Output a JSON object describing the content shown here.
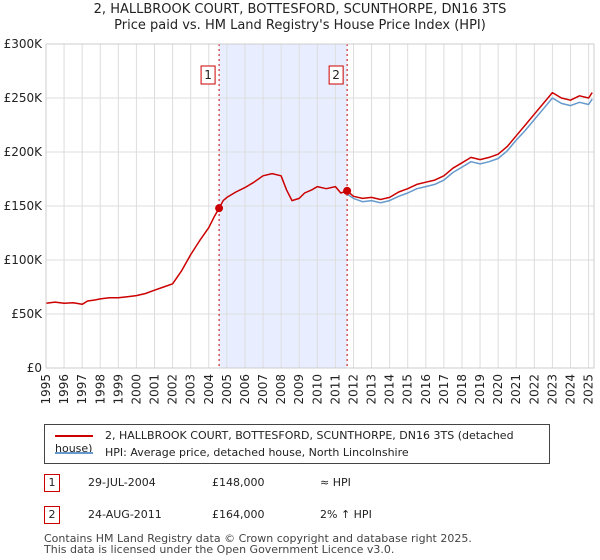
{
  "chart_data": {
    "type": "line",
    "title": "2, HALLBROOK COURT, BOTTESFORD, SCUNTHORPE, DN16 3TS",
    "subtitle": "Price paid vs. HM Land Registry's House Price Index (HPI)",
    "xlim": [
      1995,
      2025.3
    ],
    "ylim": [
      0,
      300000
    ],
    "x_ticks": [
      "1995",
      "1996",
      "1997",
      "1998",
      "1999",
      "2000",
      "2001",
      "2002",
      "2003",
      "2004",
      "2005",
      "2006",
      "2007",
      "2008",
      "2009",
      "2010",
      "2011",
      "2012",
      "2013",
      "2014",
      "2015",
      "2016",
      "2017",
      "2018",
      "2019",
      "2020",
      "2021",
      "2022",
      "2023",
      "2024",
      "2025"
    ],
    "y_ticks": [
      {
        "value": 0,
        "label": "£0"
      },
      {
        "value": 50000,
        "label": "£50K"
      },
      {
        "value": 100000,
        "label": "£100K"
      },
      {
        "value": 150000,
        "label": "£150K"
      },
      {
        "value": 200000,
        "label": "£200K"
      },
      {
        "value": 250000,
        "label": "£250K"
      },
      {
        "value": 300000,
        "label": "£300K"
      }
    ],
    "colors": {
      "property": "#cc0000",
      "hpi": "#6699cc",
      "shade": "#e8eeff",
      "vline": "#cc0000"
    },
    "shaded_range": [
      2004.57,
      2011.65
    ],
    "series": [
      {
        "name": "2, HALLBROOK COURT, BOTTESFORD, SCUNTHORPE, DN16 3TS (detached house)",
        "x": [
          1995,
          1995.5,
          1996,
          1996.5,
          1997,
          1997.3,
          1997.7,
          1998,
          1998.5,
          1999,
          1999.5,
          2000,
          2000.5,
          2001,
          2001.5,
          2002,
          2002.5,
          2003,
          2003.5,
          2004,
          2004.3,
          2004.57,
          2004.8,
          2005,
          2005.5,
          2006,
          2006.5,
          2007,
          2007.5,
          2008,
          2008.3,
          2008.6,
          2009,
          2009.3,
          2009.7,
          2010,
          2010.5,
          2011,
          2011.3,
          2011.65,
          2012,
          2012.5,
          2013,
          2013.5,
          2014,
          2014.5,
          2015,
          2015.5,
          2016,
          2016.5,
          2017,
          2017.5,
          2018,
          2018.5,
          2019,
          2019.5,
          2020,
          2020.5,
          2021,
          2021.5,
          2022,
          2022.5,
          2023,
          2023.5,
          2024,
          2024.5,
          2025,
          2025.2
        ],
        "values": [
          60000,
          61000,
          60000,
          60500,
          59000,
          62000,
          63000,
          64000,
          65000,
          65000,
          66000,
          67000,
          69000,
          72000,
          75000,
          78000,
          90000,
          105000,
          118000,
          130000,
          140000,
          148000,
          155000,
          158000,
          163000,
          167000,
          172000,
          178000,
          180000,
          178000,
          165000,
          155000,
          157000,
          162000,
          165000,
          168000,
          166000,
          168000,
          162000,
          164000,
          159000,
          157000,
          158000,
          156000,
          158000,
          163000,
          166000,
          170000,
          172000,
          174000,
          178000,
          185000,
          190000,
          195000,
          193000,
          195000,
          198000,
          205000,
          215000,
          225000,
          235000,
          245000,
          255000,
          250000,
          248000,
          252000,
          250000,
          255000
        ]
      },
      {
        "name": "HPI: Average price, detached house, North Lincolnshire",
        "x": [
          2011.65,
          2012,
          2012.5,
          2013,
          2013.5,
          2014,
          2014.5,
          2015,
          2015.5,
          2016,
          2016.5,
          2017,
          2017.5,
          2018,
          2018.5,
          2019,
          2019.5,
          2020,
          2020.5,
          2021,
          2021.5,
          2022,
          2022.5,
          2023,
          2023.5,
          2024,
          2024.5,
          2025,
          2025.2
        ],
        "values": [
          161000,
          157000,
          154000,
          155000,
          153000,
          155000,
          159000,
          162000,
          166000,
          168000,
          170000,
          174000,
          181000,
          186000,
          191000,
          189000,
          191000,
          194000,
          201000,
          211000,
          220000,
          230000,
          240000,
          250000,
          245000,
          243000,
          246000,
          244000,
          249000
        ]
      }
    ],
    "annotations": [
      {
        "label": "1",
        "x": 2004.57,
        "y": 148000
      },
      {
        "label": "2",
        "x": 2011.65,
        "y": 164000
      }
    ]
  },
  "legend": {
    "property_label": "2, HALLBROOK COURT, BOTTESFORD, SCUNTHORPE, DN16 3TS (detached house)",
    "hpi_label": "HPI: Average price, detached house, North Lincolnshire"
  },
  "transactions": [
    {
      "num": "1",
      "date": "29-JUL-2004",
      "price": "£148,000",
      "hpi": "≈ HPI"
    },
    {
      "num": "2",
      "date": "24-AUG-2011",
      "price": "£164,000",
      "hpi": "2% ↑ HPI"
    }
  ],
  "footer": {
    "line1": "Contains HM Land Registry data © Crown copyright and database right 2025.",
    "line2": "This data is licensed under the Open Government Licence v3.0."
  }
}
